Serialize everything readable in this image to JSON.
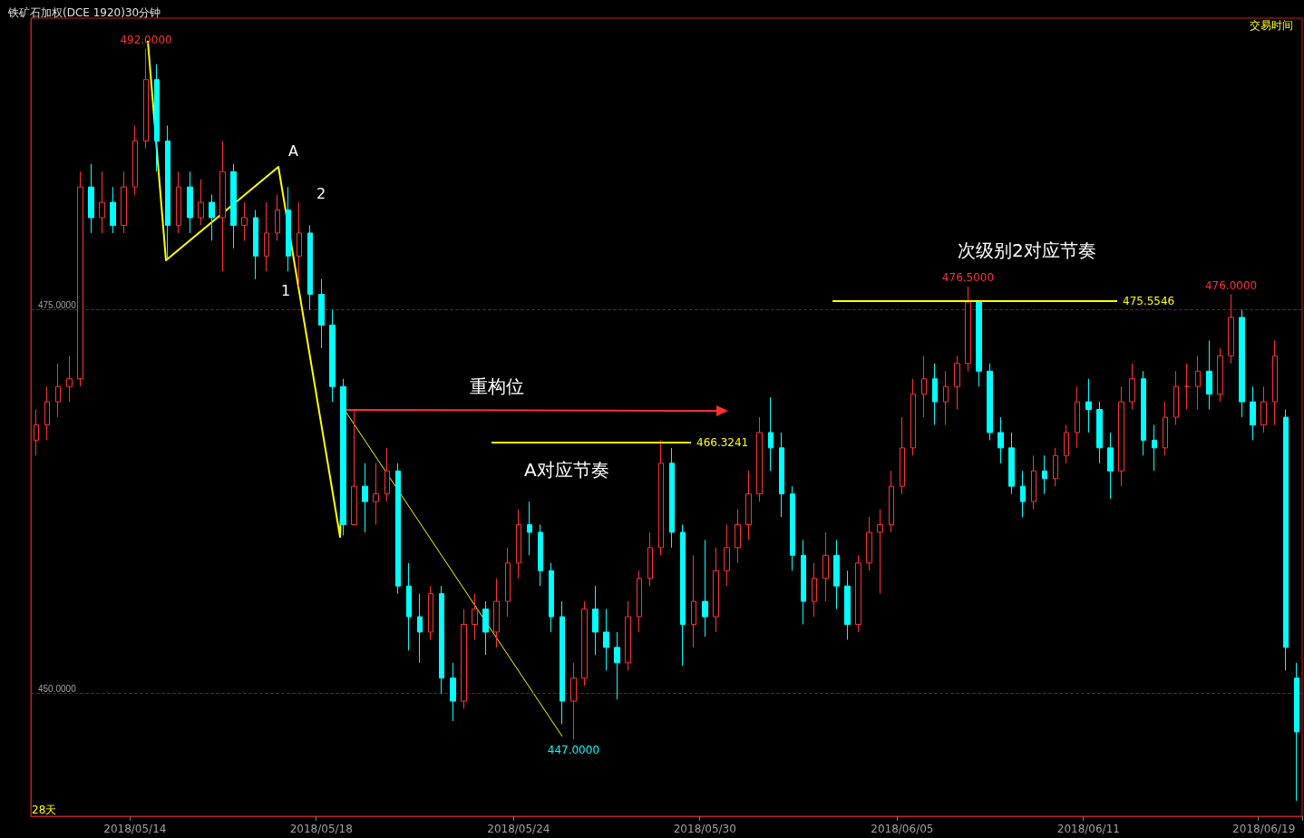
{
  "chart_data": {
    "type": "candlestick",
    "title": "铁矿石加权(DCE 1920)30分钟",
    "categories": [
      null,
      null,
      null,
      null,
      null,
      null,
      null,
      null,
      null,
      "2018/05/14",
      null,
      null,
      null,
      null,
      null,
      null,
      null,
      null,
      null,
      null,
      null,
      null,
      null,
      null,
      null,
      null,
      "2018/05/18",
      null,
      null,
      null,
      null,
      null,
      null,
      null,
      null,
      null,
      null,
      null,
      null,
      null,
      null,
      null,
      null,
      null,
      "2018/05/24",
      null,
      null,
      null,
      null,
      null,
      null,
      null,
      null,
      null,
      null,
      null,
      null,
      null,
      null,
      null,
      null,
      "2018/05/30",
      null,
      null,
      null,
      null,
      null,
      null,
      null,
      null,
      null,
      null,
      null,
      null,
      null,
      null,
      null,
      null,
      null,
      "2018/06/05",
      null,
      null,
      null,
      null,
      null,
      null,
      null,
      null,
      null,
      null,
      null,
      null,
      null,
      null,
      null,
      null,
      "2018/06/11",
      null,
      null,
      null,
      null,
      null,
      null,
      null,
      null,
      null,
      null,
      null,
      null,
      null,
      null,
      null,
      "2018/06/19",
      null,
      null,
      null
    ],
    "ohlc": [
      [
        466.5,
        468.5,
        465.5,
        467.5
      ],
      [
        467.5,
        470,
        466.5,
        469
      ],
      [
        469,
        471.5,
        468,
        470
      ],
      [
        470,
        472,
        469,
        470.5
      ],
      [
        470.5,
        484,
        470,
        483
      ],
      [
        483,
        484.5,
        480,
        481
      ],
      [
        481,
        484,
        480,
        482
      ],
      [
        482,
        483,
        480,
        480.5
      ],
      [
        480.5,
        484,
        480,
        483
      ],
      [
        483,
        487,
        482.5,
        486
      ],
      [
        486,
        492,
        485.5,
        490
      ],
      [
        490,
        491,
        484,
        486
      ],
      [
        486,
        487,
        478.3,
        480.5
      ],
      [
        480.5,
        484,
        480,
        483
      ],
      [
        483,
        484,
        480,
        481
      ],
      [
        481,
        483.5,
        480.5,
        482
      ],
      [
        482,
        482.5,
        479.5,
        481
      ],
      [
        481,
        486,
        477.5,
        484
      ],
      [
        484,
        484.5,
        479,
        480.5
      ],
      [
        480.5,
        482,
        479.5,
        481
      ],
      [
        481,
        481.5,
        477,
        478.5
      ],
      [
        478.5,
        482,
        477.5,
        480
      ],
      [
        480,
        482.5,
        479.5,
        481.5
      ],
      [
        481.5,
        483,
        477.5,
        478.5
      ],
      [
        478.5,
        482,
        476.5,
        480
      ],
      [
        480,
        480.5,
        475,
        476
      ],
      [
        476,
        477,
        472.5,
        474
      ],
      [
        474,
        475,
        469,
        470
      ],
      [
        470,
        470.5,
        460.3,
        461
      ],
      [
        461,
        468.5,
        461,
        463.5
      ],
      [
        463.5,
        465,
        460.5,
        462.5
      ],
      [
        462.5,
        465,
        461,
        463
      ],
      [
        463,
        466,
        462.5,
        464.5
      ],
      [
        464.5,
        465,
        456.5,
        457
      ],
      [
        457,
        458.5,
        452.8,
        455
      ],
      [
        455,
        456.5,
        452,
        454
      ],
      [
        454,
        457,
        453.5,
        456.5
      ],
      [
        456.5,
        457,
        450,
        451
      ],
      [
        451,
        452,
        448.2,
        449.5
      ],
      [
        449.5,
        455.5,
        449,
        454.5
      ],
      [
        454.5,
        456.5,
        453.5,
        455.5
      ],
      [
        455.5,
        456,
        452.5,
        454
      ],
      [
        454,
        457.5,
        453,
        456
      ],
      [
        456,
        459.5,
        455,
        458.5
      ],
      [
        458.5,
        462,
        457.5,
        461
      ],
      [
        461,
        462.5,
        459,
        460.5
      ],
      [
        460.5,
        461,
        457,
        458
      ],
      [
        458,
        458.5,
        454,
        455
      ],
      [
        455,
        456,
        448,
        449.5
      ],
      [
        449.5,
        452,
        447,
        451
      ],
      [
        451,
        456,
        450.5,
        455.5
      ],
      [
        455.5,
        457,
        452.5,
        454
      ],
      [
        454,
        455.5,
        451.5,
        453
      ],
      [
        453,
        454,
        449.6,
        452
      ],
      [
        452,
        456,
        451.5,
        455
      ],
      [
        455,
        458,
        454,
        457.5
      ],
      [
        457.5,
        460.5,
        457,
        459.5
      ],
      [
        459.5,
        466.5,
        459,
        465
      ],
      [
        465,
        466,
        459.5,
        460.5
      ],
      [
        460.5,
        461,
        451.8,
        454.5
      ],
      [
        454.5,
        459,
        453,
        456
      ],
      [
        456,
        460,
        453.7,
        455
      ],
      [
        455,
        459.5,
        454,
        458
      ],
      [
        458,
        461,
        457,
        459.5
      ],
      [
        459.5,
        462,
        458.5,
        461
      ],
      [
        461,
        464.5,
        460,
        463
      ],
      [
        463,
        468,
        462.5,
        467
      ],
      [
        467,
        469.3,
        464.5,
        466
      ],
      [
        466,
        467,
        461.5,
        463
      ],
      [
        463,
        463.5,
        458,
        459
      ],
      [
        459,
        460,
        454.5,
        456
      ],
      [
        456,
        458.5,
        455,
        457.5
      ],
      [
        457.5,
        460.5,
        456,
        459
      ],
      [
        459,
        460,
        455.5,
        457
      ],
      [
        457,
        458,
        453.5,
        454.5
      ],
      [
        454.5,
        459,
        454,
        458.5
      ],
      [
        458.5,
        461.5,
        458,
        460.5
      ],
      [
        460.5,
        462,
        456.5,
        461
      ],
      [
        461,
        464.5,
        460.5,
        463.5
      ],
      [
        463.5,
        468,
        463,
        466
      ],
      [
        466,
        470.5,
        465.5,
        469.5
      ],
      [
        469.5,
        472,
        468,
        470.5
      ],
      [
        470.5,
        471.5,
        467.5,
        469
      ],
      [
        469,
        471,
        467.5,
        470
      ],
      [
        470,
        472,
        468.5,
        471.5
      ],
      [
        471.5,
        476.5,
        471,
        475.5
      ],
      [
        475.5,
        475.5,
        470,
        471
      ],
      [
        471,
        471.5,
        466.5,
        467
      ],
      [
        467,
        468,
        465,
        466
      ],
      [
        466,
        467,
        463,
        463.5
      ],
      [
        463.5,
        464.5,
        461.5,
        462.5
      ],
      [
        462.5,
        465.5,
        462,
        464.5
      ],
      [
        464.5,
        465.5,
        463,
        464
      ],
      [
        464,
        466,
        463.5,
        465.5
      ],
      [
        465.5,
        467.5,
        465,
        467
      ],
      [
        467,
        470,
        466,
        469
      ],
      [
        469,
        470.5,
        467,
        468.5
      ],
      [
        468.5,
        469,
        465,
        466
      ],
      [
        466,
        467,
        462.7,
        464.5
      ],
      [
        464.5,
        470,
        463.5,
        469
      ],
      [
        469,
        471.5,
        468.5,
        470.5
      ],
      [
        470.5,
        471,
        465.5,
        466.5
      ],
      [
        466.5,
        467.5,
        464.5,
        466
      ],
      [
        466,
        469,
        465.5,
        468
      ],
      [
        468,
        471,
        467.5,
        470
      ],
      [
        470,
        471.5,
        468.5,
        470
      ],
      [
        470,
        472,
        468.5,
        471
      ],
      [
        471,
        473,
        468.5,
        469.5
      ],
      [
        469.5,
        472.5,
        469,
        472
      ],
      [
        472,
        476,
        471.5,
        474.5
      ],
      [
        474.5,
        475,
        468,
        469
      ],
      [
        469,
        470,
        466.5,
        467.5
      ],
      [
        467.5,
        470,
        467,
        469
      ],
      [
        469,
        473,
        467.5,
        472
      ],
      [
        468,
        468.5,
        451.5,
        453
      ],
      [
        451,
        452,
        443,
        447.5
      ]
    ],
    "ylim": [
      442,
      494
    ],
    "yticks": [
      {
        "value": 450,
        "label": "450.0000"
      },
      {
        "value": 475,
        "label": "475.0000"
      }
    ],
    "grid": "y",
    "ref_lines": [
      {
        "axis": "y",
        "value": 466.3241,
        "label": "466.3241",
        "color": "#ffff00"
      },
      {
        "axis": "y",
        "value": 475.5546,
        "label": "475.5546",
        "color": "#ffff00"
      }
    ],
    "annotations": [
      {
        "text": "492.0000",
        "y": 492
      },
      {
        "text": "447.0000",
        "y": 447
      },
      {
        "text": "476.5000",
        "y": 476.5
      },
      {
        "text": "476.0000",
        "y": 476
      },
      "A",
      "1",
      "2",
      "重构位",
      "A对应节奏",
      "次级别2对应节奏",
      "28天",
      "交易时间"
    ]
  }
}
